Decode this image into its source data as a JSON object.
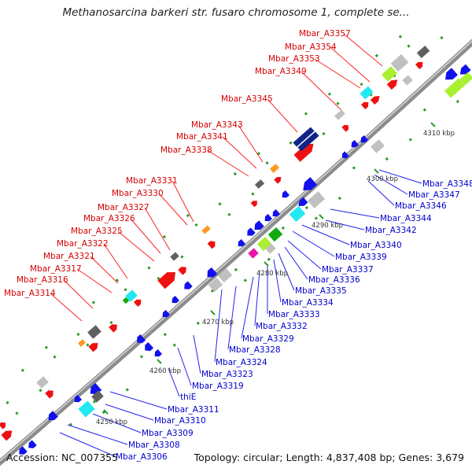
{
  "title": "Methanosarcina barkeri str. fusaro chromosome 1, complete se...",
  "footer": {
    "accession": "Accession: NC_007355",
    "summary": "Topology: circular; Length: 4,837,408 bp; Genes: 3,679"
  },
  "colors": {
    "backbone": "#8c8c8c",
    "forward_label": "#d40000",
    "reverse_label": "#0000cc",
    "feature_red": "#ee1111",
    "feature_blue": "#1111ee",
    "feature_gray": "#c0c0c0",
    "feature_darkgray": "#606060",
    "feature_cyan": "#22e8f0",
    "feature_orange": "#ff9922",
    "feature_green": "#11aa11",
    "feature_lime": "#a8f030",
    "feature_magenta": "#ee11aa",
    "feature_navy": "#112288",
    "orf_tick": "#2a9a2a"
  },
  "ticks": [
    "4250 kbp",
    "4260 kbp",
    "4270 kbp",
    "4280 kbp",
    "4290 kbp",
    "4300 kbp",
    "4310 kbp"
  ],
  "forward_labels": [
    "Mbar_A3357",
    "Mbar_A3354",
    "Mbar_A3353",
    "Mbar_A3349",
    "Mbar_A3345",
    "Mbar_A3343",
    "Mbar_A3341",
    "Mbar_A3338",
    "Mbar_A3331",
    "Mbar_A3330",
    "Mbar_A3327",
    "Mbar_A3326",
    "Mbar_A3325",
    "Mbar_A3322",
    "Mbar_A3321",
    "Mbar_A3317",
    "Mbar_A3316",
    "Mbar_A3314"
  ],
  "reverse_labels": [
    "Mbar_A3348",
    "Mbar_A3347",
    "Mbar_A3346",
    "Mbar_A3344",
    "Mbar_A3342",
    "Mbar_A3340",
    "Mbar_A3339",
    "Mbar_A3337",
    "Mbar_A3336",
    "Mbar_A3335",
    "Mbar_A3334",
    "Mbar_A3333",
    "Mbar_A3332",
    "Mbar_A3329",
    "Mbar_A3328",
    "Mbar_A3324",
    "Mbar_A3323",
    "Mbar_A3319",
    "thiE",
    "Mbar_A3311",
    "Mbar_A3310",
    "Mbar_A3309",
    "Mbar_A3308",
    "Mbar_A3306"
  ]
}
